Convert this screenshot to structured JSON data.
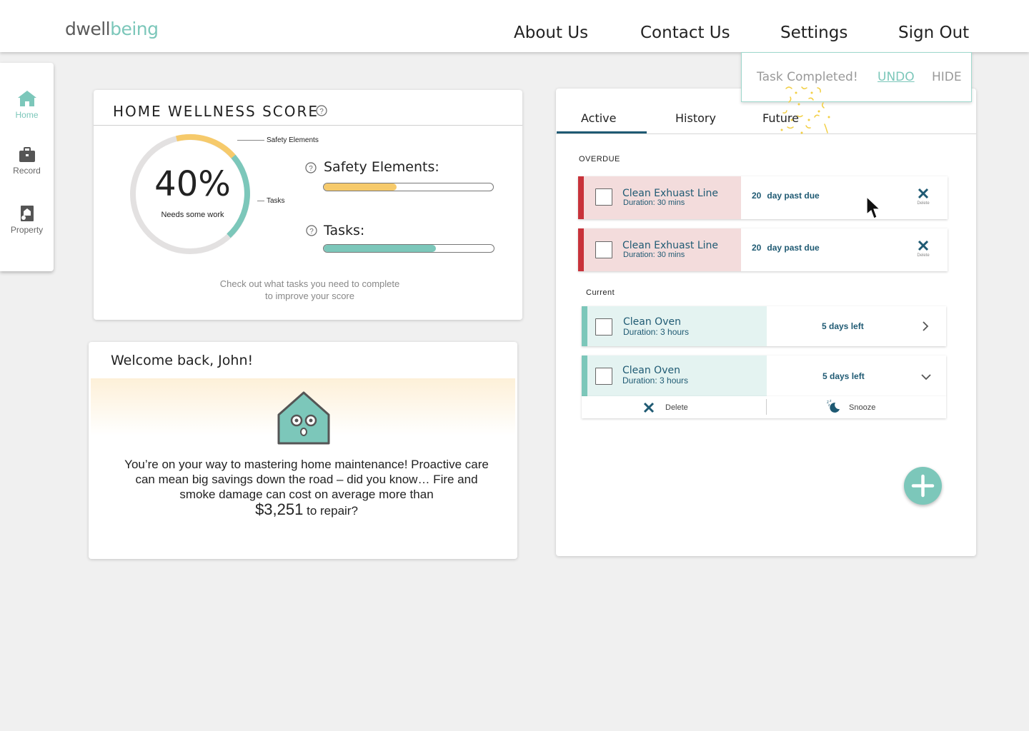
{
  "header": {
    "logo_part1": "dwell",
    "logo_part2": "being",
    "nav": [
      "About Us",
      "Contact Us",
      "Settings",
      "Sign Out"
    ]
  },
  "sidebar": {
    "items": [
      {
        "label": "Home",
        "icon": "home-icon"
      },
      {
        "label": "Record",
        "icon": "briefcase-icon"
      },
      {
        "label": "Property",
        "icon": "property-icon"
      }
    ]
  },
  "wellness": {
    "title": "HOME WELLNESS SCORE",
    "percent": "40%",
    "status": "Needs some work",
    "gauge_callout_safety": "Safety Elements",
    "gauge_callout_tasks": "Tasks",
    "safety_label": "Safety Elements:",
    "tasks_label": "Tasks:",
    "safety_fraction": 0.43,
    "tasks_fraction": 0.66,
    "hint": "Check out what tasks you need to complete to improve your score",
    "colors": {
      "safety": "#f6ca6b",
      "tasks": "#7cc7ba",
      "track": "#e3e1e1"
    }
  },
  "welcome": {
    "title": "Welcome back, John!",
    "message": "You’re on your way to mastering home maintenance! Proactive care can mean big savings down the road – did you know… Fire and smoke damage can cost on average more than",
    "amount": "$3,251",
    "suffix": "to repair?"
  },
  "tasks": {
    "tabs": [
      "Active",
      "History",
      "Future"
    ],
    "active_tab": "Active",
    "overdue_label": "OVERDUE",
    "current_label": "Current",
    "overdue": [
      {
        "name": "Clean Exhuast Line",
        "duration": "Duration: 30 mins",
        "count": "20",
        "due": "day past due",
        "delete_label": "Delete"
      },
      {
        "name": "Clean Exhuast Line",
        "duration": "Duration: 30 mins",
        "count": "20",
        "due": "day past due",
        "delete_label": "Delete"
      }
    ],
    "current": [
      {
        "name": "Clean Oven",
        "duration": "Duration: 3 hours",
        "due": "5 days left"
      },
      {
        "name": "Clean Oven",
        "duration": "Duration: 3 hours",
        "due": "5 days left"
      }
    ],
    "actions": {
      "delete": "Delete",
      "snooze": "Snooze"
    },
    "colors": {
      "overdue_bar": "#c8323a",
      "overdue_bg": "#f3dcdc",
      "current_bar": "#7cc7ba",
      "current_bg": "#e4f3f1"
    }
  },
  "toast": {
    "message": "Task Completed!",
    "undo": "UNDO",
    "hide": "HIDE"
  }
}
